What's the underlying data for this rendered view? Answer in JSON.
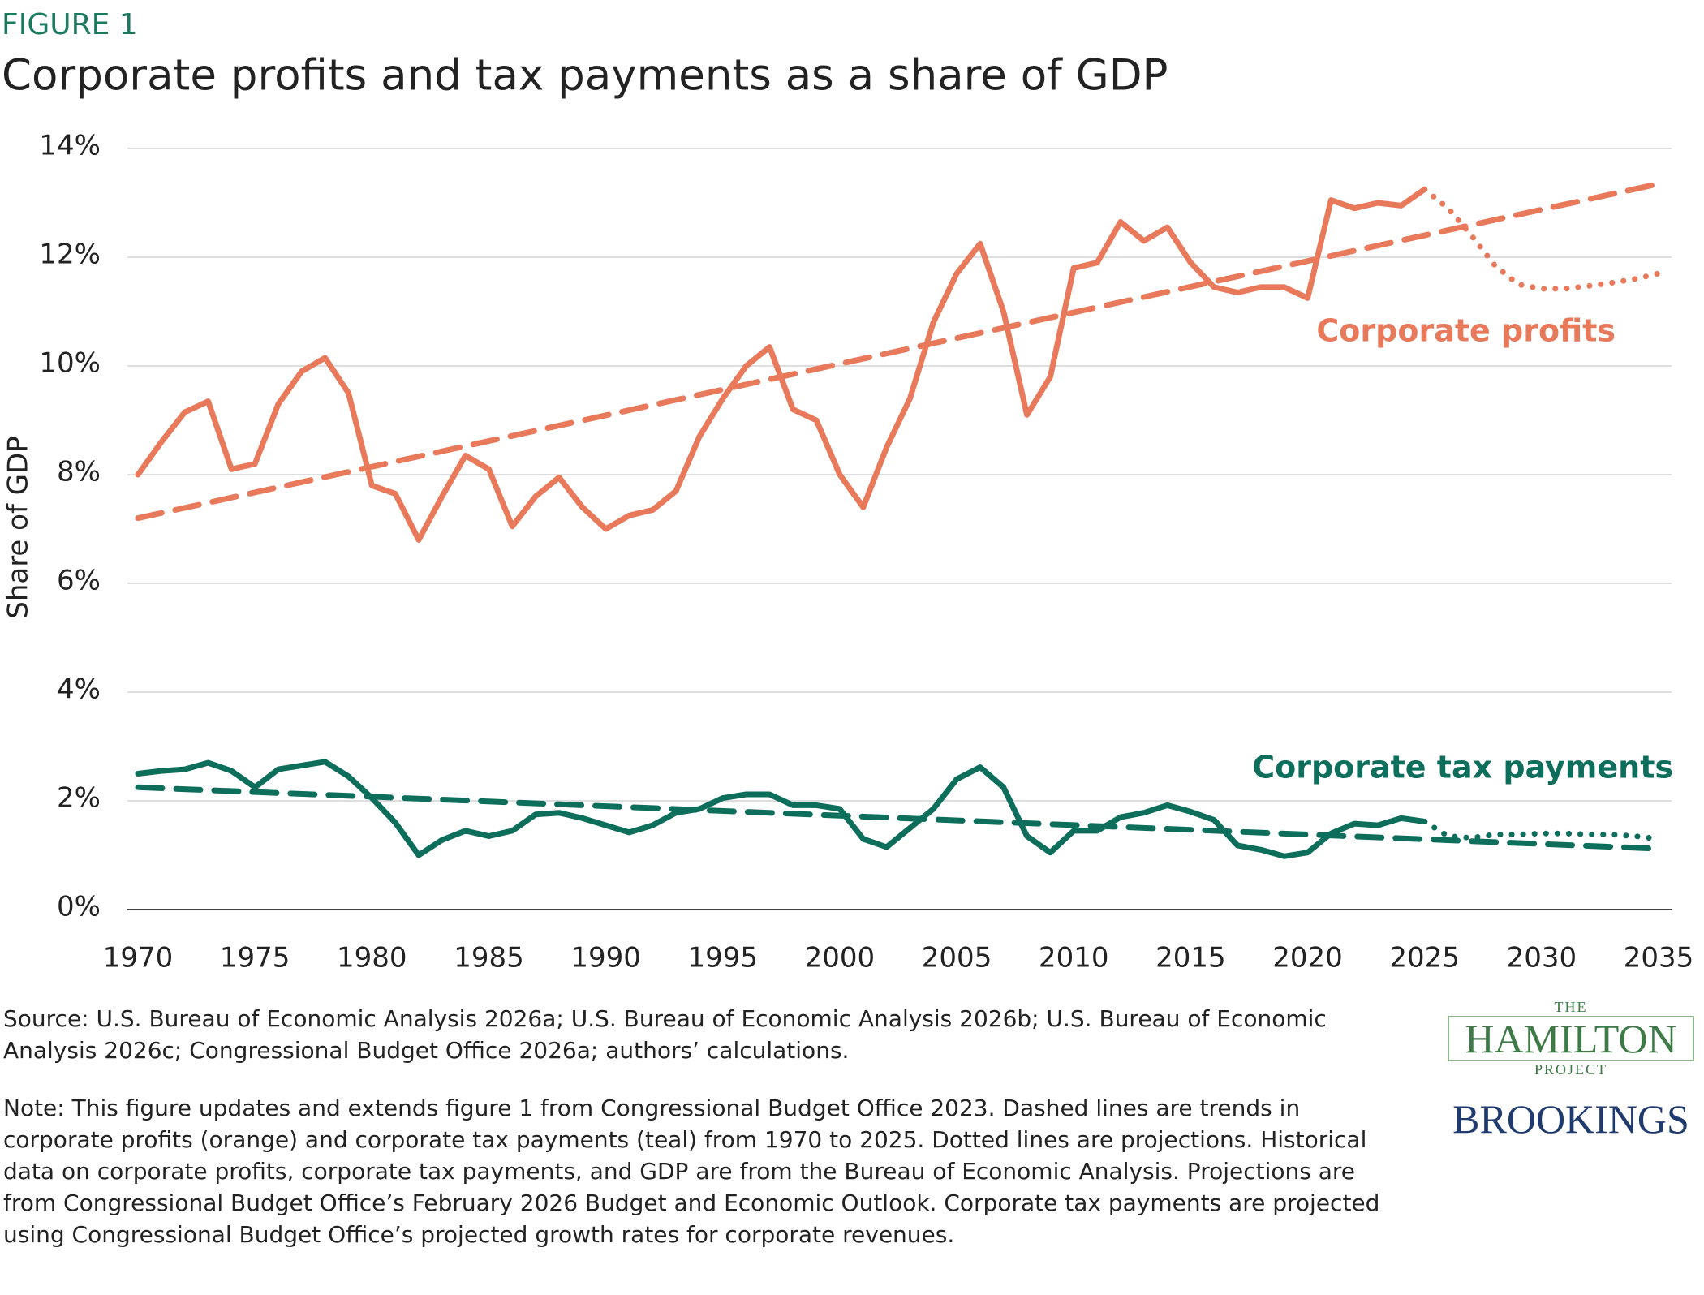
{
  "chart_data": {
    "type": "line",
    "label": "FIGURE 1",
    "title": "Corporate profits and tax payments as a share of GDP",
    "y_label": "Share of GDP",
    "xlim": [
      1970,
      2035
    ],
    "xticks": [
      1970,
      1975,
      1980,
      1985,
      1990,
      1995,
      2000,
      2005,
      2010,
      2015,
      2020,
      2025,
      2030,
      2035
    ],
    "ylim": [
      0,
      14
    ],
    "yticks": [
      {
        "value": 0,
        "label": "0%"
      },
      {
        "value": 2,
        "label": "2%"
      },
      {
        "value": 4,
        "label": "4%"
      },
      {
        "value": 6,
        "label": "6%"
      },
      {
        "value": 8,
        "label": "8%"
      },
      {
        "value": 10,
        "label": "10%"
      },
      {
        "value": 12,
        "label": "12%"
      },
      {
        "value": 14,
        "label": "14%"
      }
    ],
    "grid": true,
    "series": [
      {
        "name": "Corporate profits",
        "color": "#e8795a",
        "style": "solid",
        "x": [
          1970,
          1971,
          1972,
          1973,
          1974,
          1975,
          1976,
          1977,
          1978,
          1979,
          1980,
          1981,
          1982,
          1983,
          1984,
          1985,
          1986,
          1987,
          1988,
          1989,
          1990,
          1991,
          1992,
          1993,
          1994,
          1995,
          1996,
          1997,
          1998,
          1999,
          2000,
          2001,
          2002,
          2003,
          2004,
          2005,
          2006,
          2007,
          2008,
          2009,
          2010,
          2011,
          2012,
          2013,
          2014,
          2015,
          2016,
          2017,
          2018,
          2019,
          2020,
          2021,
          2022,
          2023,
          2024,
          2025
        ],
        "values": [
          8.0,
          8.6,
          9.15,
          9.35,
          8.1,
          8.2,
          9.3,
          9.9,
          10.15,
          9.5,
          7.8,
          7.65,
          6.8,
          7.6,
          8.35,
          8.1,
          7.05,
          7.6,
          7.95,
          7.4,
          7.0,
          7.25,
          7.35,
          7.7,
          8.7,
          9.4,
          10.0,
          10.35,
          9.2,
          9.0,
          8.0,
          7.4,
          8.5,
          9.4,
          10.8,
          11.7,
          12.25,
          11.0,
          9.1,
          9.8,
          11.8,
          11.9,
          12.65,
          12.3,
          12.55,
          11.9,
          11.45,
          11.35,
          11.45,
          11.45,
          11.25,
          13.05,
          12.9,
          13.0,
          12.95,
          13.25
        ]
      },
      {
        "color": "#e8795a",
        "style": "dashed",
        "x": [
          1970,
          2035
        ],
        "values": [
          7.2,
          13.35
        ]
      },
      {
        "color": "#e8795a",
        "style": "dotted",
        "x": [
          2025,
          2026,
          2027,
          2028,
          2029,
          2030,
          2031,
          2032,
          2033,
          2034,
          2035
        ],
        "values": [
          13.25,
          12.9,
          12.4,
          11.85,
          11.5,
          11.42,
          11.42,
          11.47,
          11.53,
          11.6,
          11.7
        ]
      },
      {
        "name": "Corporate tax payments",
        "color": "#0e6e5c",
        "style": "solid",
        "x": [
          1970,
          1971,
          1972,
          1973,
          1974,
          1975,
          1976,
          1977,
          1978,
          1979,
          1980,
          1981,
          1982,
          1983,
          1984,
          1985,
          1986,
          1987,
          1988,
          1989,
          1990,
          1991,
          1992,
          1993,
          1994,
          1995,
          1996,
          1997,
          1998,
          1999,
          2000,
          2001,
          2002,
          2003,
          2004,
          2005,
          2006,
          2007,
          2008,
          2009,
          2010,
          2011,
          2012,
          2013,
          2014,
          2015,
          2016,
          2017,
          2018,
          2019,
          2020,
          2021,
          2022,
          2023,
          2024,
          2025
        ],
        "values": [
          2.5,
          2.55,
          2.58,
          2.7,
          2.55,
          2.25,
          2.58,
          2.65,
          2.72,
          2.45,
          2.05,
          1.6,
          1.0,
          1.28,
          1.45,
          1.35,
          1.45,
          1.75,
          1.78,
          1.68,
          1.55,
          1.42,
          1.55,
          1.78,
          1.85,
          2.05,
          2.12,
          2.12,
          1.92,
          1.92,
          1.85,
          1.3,
          1.15,
          1.5,
          1.85,
          2.4,
          2.62,
          2.25,
          1.35,
          1.05,
          1.45,
          1.45,
          1.7,
          1.78,
          1.92,
          1.8,
          1.65,
          1.18,
          1.1,
          0.98,
          1.05,
          1.4,
          1.58,
          1.55,
          1.68,
          1.62
        ]
      },
      {
        "color": "#0e6e5c",
        "style": "dashed",
        "x": [
          1970,
          2035
        ],
        "values": [
          2.25,
          1.12
        ]
      },
      {
        "color": "#0e6e5c",
        "style": "dotted",
        "x": [
          2025,
          2026,
          2027,
          2028,
          2029,
          2030,
          2031,
          2032,
          2033,
          2034,
          2035
        ],
        "values": [
          1.62,
          1.35,
          1.32,
          1.38,
          1.38,
          1.4,
          1.4,
          1.38,
          1.38,
          1.35,
          1.3
        ]
      }
    ]
  },
  "footer": {
    "source": "Source: U.S. Bureau of Economic Analysis 2026a; U.S. Bureau of Economic Analysis 2026b; U.S. Bureau of Economic Analysis 2026c; Congressional Budget Office 2026a; authors’ calculations.",
    "note": "Note: This figure updates and extends figure 1 from Congressional Budget Office 2023. Dashed lines are trends in corporate profits (orange) and corporate tax payments (teal) from 1970 to 2025. Dotted lines are projections. Historical data on corporate profits, corporate tax payments, and GDP are from the Bureau of Economic Analysis. Projections are from Congressional Budget Office’s February 2026 Budget and Economic Outlook. Corporate tax payments are projected using Congressional Budget Office’s projected growth rates for corporate revenues."
  },
  "logo": {
    "the": "THE",
    "hamilton": "HAMILTON",
    "project": "PROJECT",
    "brookings": "BROOKINGS"
  }
}
